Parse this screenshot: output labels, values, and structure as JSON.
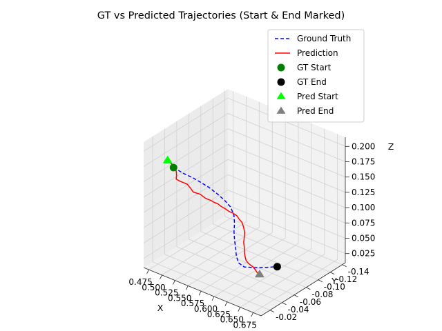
{
  "chart_data": {
    "type": "line3d",
    "title": "GT vs Predicted Trajectories (Start & End Marked)",
    "xlabel": "X",
    "ylabel": "Y",
    "zlabel": "Z",
    "xlim": [
      0.465,
      0.69
    ],
    "ylim": [
      -0.145,
      -0.005
    ],
    "zlim": [
      0.01,
      0.215
    ],
    "xticks": [
      "0.475",
      "0.500",
      "0.525",
      "0.550",
      "0.575",
      "0.600",
      "0.625",
      "0.650",
      "0.675"
    ],
    "yticks": [
      "-0.02",
      "-0.04",
      "-0.06",
      "-0.08",
      "-0.10",
      "-0.12",
      "-0.14"
    ],
    "zticks": [
      "0.025",
      "0.050",
      "0.075",
      "0.100",
      "0.125",
      "0.150",
      "0.175",
      "0.200"
    ],
    "grid": true,
    "legend_position": "top-right",
    "legend": [
      {
        "label": "Ground Truth",
        "kind": "dashed-line",
        "color": "#0000ff"
      },
      {
        "label": "Prediction",
        "kind": "solid-line",
        "color": "#ff0000"
      },
      {
        "label": "GT Start",
        "kind": "circle",
        "color": "#008000"
      },
      {
        "label": "GT End",
        "kind": "circle",
        "color": "#000000"
      },
      {
        "label": "Pred Start",
        "kind": "triangle",
        "color": "#00ff00"
      },
      {
        "label": "Pred End",
        "kind": "triangle",
        "color": "#808080"
      }
    ],
    "series": [
      {
        "name": "Ground Truth",
        "color": "#0000ff",
        "style": "dashed",
        "points": [
          [
            0.505,
            -0.02,
            0.178
          ],
          [
            0.506,
            -0.025,
            0.172
          ],
          [
            0.512,
            -0.03,
            0.165
          ],
          [
            0.522,
            -0.036,
            0.158
          ],
          [
            0.532,
            -0.04,
            0.152
          ],
          [
            0.545,
            -0.044,
            0.145
          ],
          [
            0.556,
            -0.048,
            0.136
          ],
          [
            0.566,
            -0.052,
            0.126
          ],
          [
            0.574,
            -0.055,
            0.116
          ],
          [
            0.578,
            -0.057,
            0.103
          ],
          [
            0.578,
            -0.058,
            0.089
          ],
          [
            0.577,
            -0.058,
            0.075
          ],
          [
            0.577,
            -0.059,
            0.06
          ],
          [
            0.578,
            -0.06,
            0.047
          ],
          [
            0.578,
            -0.061,
            0.034
          ],
          [
            0.58,
            -0.063,
            0.022
          ],
          [
            0.585,
            -0.068,
            0.014
          ],
          [
            0.595,
            -0.078,
            0.01
          ],
          [
            0.605,
            -0.088,
            0.008
          ],
          [
            0.616,
            -0.096,
            0.008
          ]
        ]
      },
      {
        "name": "Prediction",
        "color": "#ff0000",
        "style": "solid",
        "points": [
          [
            0.504,
            -0.011,
            0.195
          ],
          [
            0.508,
            -0.014,
            0.189
          ],
          [
            0.513,
            -0.016,
            0.183
          ],
          [
            0.514,
            -0.017,
            0.175
          ],
          [
            0.513,
            -0.018,
            0.168
          ],
          [
            0.51,
            -0.02,
            0.161
          ],
          [
            0.514,
            -0.023,
            0.157
          ],
          [
            0.523,
            -0.027,
            0.153
          ],
          [
            0.528,
            -0.029,
            0.146
          ],
          [
            0.53,
            -0.031,
            0.14
          ],
          [
            0.54,
            -0.034,
            0.138
          ],
          [
            0.548,
            -0.036,
            0.133
          ],
          [
            0.555,
            -0.038,
            0.131
          ],
          [
            0.561,
            -0.039,
            0.129
          ],
          [
            0.567,
            -0.04,
            0.128
          ],
          [
            0.571,
            -0.042,
            0.124
          ],
          [
            0.576,
            -0.044,
            0.121
          ],
          [
            0.582,
            -0.046,
            0.117
          ],
          [
            0.587,
            -0.048,
            0.115
          ],
          [
            0.592,
            -0.05,
            0.111
          ],
          [
            0.595,
            -0.051,
            0.106
          ],
          [
            0.598,
            -0.053,
            0.101
          ],
          [
            0.6,
            -0.054,
            0.093
          ],
          [
            0.601,
            -0.055,
            0.084
          ],
          [
            0.6,
            -0.055,
            0.075
          ],
          [
            0.598,
            -0.056,
            0.066
          ],
          [
            0.598,
            -0.057,
            0.057
          ],
          [
            0.597,
            -0.058,
            0.049
          ],
          [
            0.597,
            -0.059,
            0.041
          ],
          [
            0.598,
            -0.06,
            0.034
          ],
          [
            0.6,
            -0.062,
            0.029
          ],
          [
            0.603,
            -0.064,
            0.025
          ],
          [
            0.604,
            -0.066,
            0.022
          ],
          [
            0.606,
            -0.067,
            0.019
          ],
          [
            0.607,
            -0.068,
            0.017
          ],
          [
            0.606,
            -0.069,
            0.015
          ],
          [
            0.607,
            -0.07,
            0.012
          ],
          [
            0.608,
            -0.071,
            0.01
          ],
          [
            0.61,
            -0.072,
            0.008
          ]
        ]
      }
    ],
    "markers": [
      {
        "name": "GT Start",
        "shape": "circle",
        "color": "#008000",
        "point": [
          0.505,
          -0.02,
          0.178
        ]
      },
      {
        "name": "GT End",
        "shape": "circle",
        "color": "#000000",
        "point": [
          0.616,
          -0.096,
          0.008
        ]
      },
      {
        "name": "Pred Start",
        "shape": "triangle",
        "color": "#00ff00",
        "point": [
          0.504,
          -0.011,
          0.195
        ]
      },
      {
        "name": "Pred End",
        "shape": "triangle",
        "color": "#808080",
        "point": [
          0.61,
          -0.072,
          0.008
        ]
      }
    ]
  }
}
